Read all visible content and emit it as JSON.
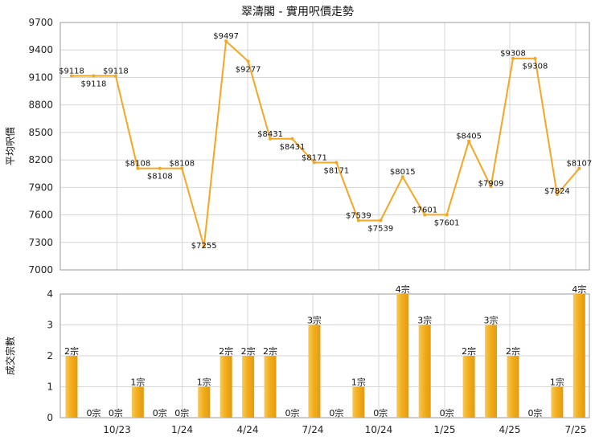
{
  "colors": {
    "line": "#F5A623",
    "bar": "#F2B01E",
    "grid": "#d6d6d6",
    "frame": "#9a9a9a"
  },
  "chart_data": [
    {
      "type": "line",
      "title": "翠濤閣 - 實用呎價走勢",
      "ylabel": "平均呎價",
      "ylim": [
        7000,
        9700
      ],
      "yticks": [
        7000,
        7300,
        7600,
        7900,
        8200,
        8500,
        8800,
        9100,
        9400,
        9700
      ],
      "grid": true,
      "x_ticks": [
        "10/23",
        "1/24",
        "4/24",
        "7/24",
        "10/24",
        "1/25",
        "4/25",
        "7/25"
      ],
      "series": [
        {
          "values": [
            9118,
            9118,
            9118,
            8108,
            8108,
            8108,
            7255,
            9497,
            9277,
            8431,
            8431,
            8171,
            8171,
            7539,
            7539,
            8015,
            7601,
            7601,
            8405,
            7909,
            9308,
            9308,
            7824,
            8107
          ],
          "labels": [
            "$9118",
            "$9118",
            "$9118",
            "$8108",
            "$8108",
            "$8108",
            "$7255",
            "$9497",
            "$9277",
            "$8431",
            "$8431",
            "$8171",
            "$8171",
            "$7539",
            "$7539",
            "$8015",
            "$7601",
            "$7601",
            "$8405",
            "$7909",
            "$9308",
            "$9308",
            "$7824",
            "$8107"
          ]
        }
      ]
    },
    {
      "type": "bar",
      "ylabel": "成交宗數",
      "ylim": [
        0,
        4
      ],
      "yticks": [
        0,
        1,
        2,
        3,
        4
      ],
      "grid": true,
      "x_ticks": [
        "10/23",
        "1/24",
        "4/24",
        "7/24",
        "10/24",
        "1/25",
        "4/25",
        "7/25"
      ],
      "values": [
        2,
        0,
        0,
        1,
        0,
        0,
        1,
        2,
        2,
        2,
        0,
        3,
        0,
        1,
        0,
        4,
        3,
        0,
        2,
        3,
        2,
        0,
        1,
        4
      ],
      "labels": [
        "2宗",
        "0宗",
        "0宗",
        "1宗",
        "0宗",
        "0宗",
        "1宗",
        "2宗",
        "2宗",
        "2宗",
        "0宗",
        "3宗",
        "0宗",
        "1宗",
        "0宗",
        "4宗",
        "3宗",
        "0宗",
        "2宗",
        "3宗",
        "2宗",
        "0宗",
        "1宗",
        "4宗"
      ]
    }
  ]
}
